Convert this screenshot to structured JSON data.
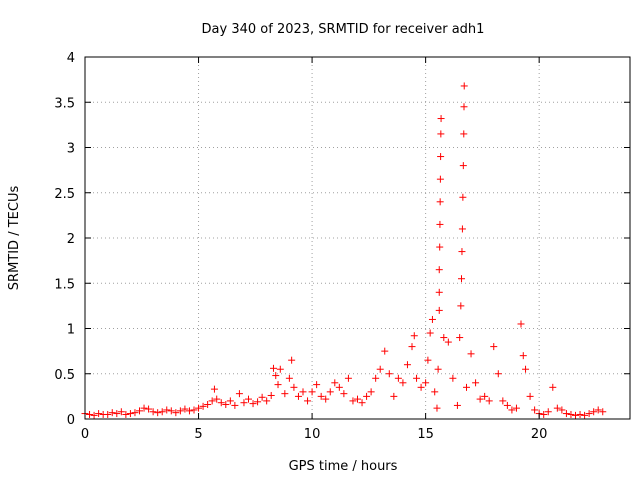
{
  "chart_data": {
    "type": "scatter",
    "title": "Day 340 of 2023, SRMTID for receiver adh1",
    "xlabel": "GPS time / hours",
    "ylabel": "SRMTID / TECUs",
    "xlim": [
      0,
      24
    ],
    "ylim": [
      0,
      4
    ],
    "xticks": [
      0,
      5,
      10,
      15,
      20
    ],
    "yticks": [
      0,
      0.5,
      1,
      1.5,
      2,
      2.5,
      3,
      3.5,
      4
    ],
    "xtick_labels": [
      "0",
      "5",
      "10",
      "15",
      "20"
    ],
    "ytick_labels": [
      "0",
      "0.5",
      "1",
      "1.5",
      "2",
      "2.5",
      "3",
      "3.5",
      "4"
    ],
    "marker": "+",
    "series": [
      {
        "name": "adh1",
        "color": "#ff0000",
        "points": [
          [
            0.0,
            0.06
          ],
          [
            0.2,
            0.05
          ],
          [
            0.4,
            0.04
          ],
          [
            0.6,
            0.06
          ],
          [
            0.8,
            0.05
          ],
          [
            1.0,
            0.05
          ],
          [
            1.2,
            0.07
          ],
          [
            1.4,
            0.06
          ],
          [
            1.6,
            0.08
          ],
          [
            1.8,
            0.05
          ],
          [
            2.0,
            0.06
          ],
          [
            2.2,
            0.07
          ],
          [
            2.4,
            0.09
          ],
          [
            2.6,
            0.12
          ],
          [
            2.8,
            0.11
          ],
          [
            3.0,
            0.08
          ],
          [
            3.2,
            0.07
          ],
          [
            3.4,
            0.08
          ],
          [
            3.6,
            0.1
          ],
          [
            3.8,
            0.09
          ],
          [
            4.0,
            0.07
          ],
          [
            4.2,
            0.09
          ],
          [
            4.4,
            0.11
          ],
          [
            4.6,
            0.09
          ],
          [
            4.8,
            0.1
          ],
          [
            5.0,
            0.12
          ],
          [
            5.2,
            0.14
          ],
          [
            5.4,
            0.16
          ],
          [
            5.6,
            0.2
          ],
          [
            5.7,
            0.33
          ],
          [
            5.8,
            0.22
          ],
          [
            6.0,
            0.18
          ],
          [
            6.2,
            0.16
          ],
          [
            6.4,
            0.2
          ],
          [
            6.6,
            0.15
          ],
          [
            6.8,
            0.28
          ],
          [
            7.0,
            0.18
          ],
          [
            7.2,
            0.22
          ],
          [
            7.4,
            0.17
          ],
          [
            7.6,
            0.19
          ],
          [
            7.8,
            0.24
          ],
          [
            8.0,
            0.2
          ],
          [
            8.2,
            0.26
          ],
          [
            8.3,
            0.56
          ],
          [
            8.4,
            0.48
          ],
          [
            8.5,
            0.38
          ],
          [
            8.6,
            0.55
          ],
          [
            8.8,
            0.28
          ],
          [
            9.0,
            0.45
          ],
          [
            9.1,
            0.65
          ],
          [
            9.2,
            0.35
          ],
          [
            9.4,
            0.25
          ],
          [
            9.6,
            0.3
          ],
          [
            9.8,
            0.2
          ],
          [
            10.0,
            0.3
          ],
          [
            10.2,
            0.38
          ],
          [
            10.4,
            0.25
          ],
          [
            10.6,
            0.22
          ],
          [
            10.8,
            0.3
          ],
          [
            11.0,
            0.4
          ],
          [
            11.2,
            0.35
          ],
          [
            11.4,
            0.28
          ],
          [
            11.6,
            0.45
          ],
          [
            11.8,
            0.2
          ],
          [
            12.0,
            0.22
          ],
          [
            12.2,
            0.18
          ],
          [
            12.4,
            0.25
          ],
          [
            12.6,
            0.3
          ],
          [
            12.8,
            0.45
          ],
          [
            13.0,
            0.55
          ],
          [
            13.2,
            0.75
          ],
          [
            13.4,
            0.5
          ],
          [
            13.6,
            0.25
          ],
          [
            13.8,
            0.45
          ],
          [
            14.0,
            0.4
          ],
          [
            14.2,
            0.6
          ],
          [
            14.4,
            0.8
          ],
          [
            14.5,
            0.92
          ],
          [
            14.6,
            0.45
          ],
          [
            14.8,
            0.35
          ],
          [
            15.0,
            0.4
          ],
          [
            15.1,
            0.65
          ],
          [
            15.2,
            0.95
          ],
          [
            15.3,
            1.1
          ],
          [
            15.4,
            0.3
          ],
          [
            15.5,
            0.12
          ],
          [
            15.55,
            0.55
          ],
          [
            15.6,
            1.2
          ],
          [
            15.6,
            1.4
          ],
          [
            15.6,
            1.65
          ],
          [
            15.62,
            1.9
          ],
          [
            15.63,
            2.15
          ],
          [
            15.64,
            2.4
          ],
          [
            15.65,
            2.65
          ],
          [
            15.66,
            2.9
          ],
          [
            15.67,
            3.15
          ],
          [
            15.68,
            3.32
          ],
          [
            15.8,
            0.9
          ],
          [
            16.0,
            0.85
          ],
          [
            16.2,
            0.45
          ],
          [
            16.4,
            0.15
          ],
          [
            16.5,
            0.9
          ],
          [
            16.55,
            1.25
          ],
          [
            16.58,
            1.55
          ],
          [
            16.6,
            1.85
          ],
          [
            16.62,
            2.1
          ],
          [
            16.64,
            2.45
          ],
          [
            16.66,
            2.8
          ],
          [
            16.68,
            3.15
          ],
          [
            16.69,
            3.45
          ],
          [
            16.7,
            3.68
          ],
          [
            16.8,
            0.35
          ],
          [
            17.0,
            0.72
          ],
          [
            17.2,
            0.4
          ],
          [
            17.4,
            0.22
          ],
          [
            17.6,
            0.25
          ],
          [
            17.8,
            0.2
          ],
          [
            18.0,
            0.8
          ],
          [
            18.2,
            0.5
          ],
          [
            18.4,
            0.2
          ],
          [
            18.6,
            0.15
          ],
          [
            18.8,
            0.1
          ],
          [
            19.0,
            0.12
          ],
          [
            19.2,
            1.05
          ],
          [
            19.3,
            0.7
          ],
          [
            19.4,
            0.55
          ],
          [
            19.6,
            0.25
          ],
          [
            19.8,
            0.1
          ],
          [
            20.0,
            0.06
          ],
          [
            20.2,
            0.05
          ],
          [
            20.4,
            0.08
          ],
          [
            20.6,
            0.35
          ],
          [
            20.8,
            0.12
          ],
          [
            21.0,
            0.1
          ],
          [
            21.2,
            0.06
          ],
          [
            21.4,
            0.05
          ],
          [
            21.6,
            0.04
          ],
          [
            21.8,
            0.05
          ],
          [
            22.0,
            0.04
          ],
          [
            22.2,
            0.06
          ],
          [
            22.4,
            0.08
          ],
          [
            22.6,
            0.1
          ],
          [
            22.8,
            0.08
          ]
        ]
      }
    ]
  }
}
